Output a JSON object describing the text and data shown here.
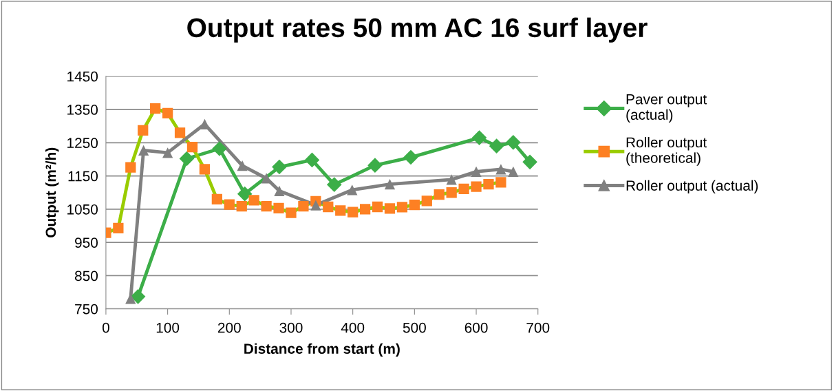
{
  "chart_data": {
    "type": "line",
    "title": "Output rates 50 mm AC 16 surf layer",
    "xlabel": "Distance from start (m)",
    "ylabel": "Output (m²/h)",
    "xlim": [
      0,
      700
    ],
    "xticks": [
      0,
      100,
      200,
      300,
      400,
      500,
      600,
      700
    ],
    "ylim": [
      750,
      1450
    ],
    "yticks": [
      750,
      850,
      950,
      1050,
      1150,
      1250,
      1350,
      1450
    ],
    "grid": "y",
    "legend": "right",
    "series": [
      {
        "name": "Paver output\n(actual)",
        "color": "#3cae48",
        "marker": "diamond",
        "x": [
          52,
          131,
          184,
          225,
          281,
          334,
          370,
          436,
          494,
          605,
          633,
          660,
          687
        ],
        "values": [
          787,
          1202,
          1232,
          1096,
          1177,
          1198,
          1124,
          1182,
          1206,
          1265,
          1240,
          1251,
          1192
        ]
      },
      {
        "name": "Roller output\n(theoretical)",
        "color": "#99cc00",
        "colors": [
          "#fd8023",
          "#fd8023",
          "#fd8023",
          "#fd8023",
          "#fd8023",
          "#fd8023",
          "#fd8023",
          "#fd8023",
          "#fd8023",
          "#fd8023",
          "#fd8023",
          "#fd8023",
          "#fd8023",
          "#fd8023",
          "#fd8023",
          "#fd8023",
          "#fd8023",
          "#fd8023",
          "#fd8023",
          "#fd8023",
          "#fd8023",
          "#fd8023",
          "#fd8023",
          "#fd8023",
          "#fd8023",
          "#fd8023",
          "#fd8023",
          "#fd8023",
          "#fd8023",
          "#fd8023",
          "#fd8023",
          "#fd8023",
          "#fd8023"
        ],
        "marker": "square",
        "x": [
          0,
          20,
          40,
          60,
          80,
          100,
          120,
          140,
          160,
          180,
          200,
          220,
          240,
          260,
          280,
          300,
          320,
          340,
          360,
          380,
          400,
          420,
          440,
          460,
          480,
          500,
          520,
          540,
          560,
          580,
          600,
          620,
          640
        ],
        "values": [
          979,
          993,
          1176,
          1287,
          1353,
          1339,
          1280,
          1237,
          1170,
          1080,
          1064,
          1059,
          1077,
          1059,
          1053,
          1039,
          1059,
          1074,
          1057,
          1046,
          1041,
          1050,
          1057,
          1052,
          1056,
          1063,
          1075,
          1094,
          1100,
          1111,
          1118,
          1125,
          1131
        ]
      },
      {
        "name": "Roller output (actual)",
        "color": "#808080",
        "marker": "triangle",
        "x": [
          40,
          61,
          100,
          160,
          221,
          260,
          281,
          340,
          399,
          460,
          560,
          600,
          640,
          660
        ],
        "values": [
          781,
          1227,
          1220,
          1306,
          1181,
          1143,
          1105,
          1062,
          1108,
          1125,
          1139,
          1163,
          1170,
          1163
        ]
      }
    ]
  }
}
